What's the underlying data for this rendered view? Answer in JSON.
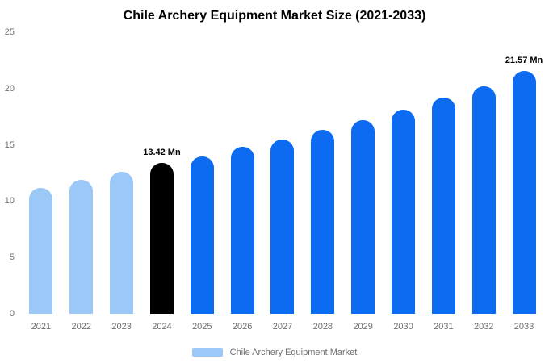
{
  "chart_data": {
    "type": "bar",
    "title": "Chile Archery Equipment Market Size (2021-2033)",
    "unit": "Mn",
    "categories": [
      "2021",
      "2022",
      "2023",
      "2024",
      "2025",
      "2026",
      "2027",
      "2028",
      "2029",
      "2030",
      "2031",
      "2032",
      "2033"
    ],
    "values": [
      11.2,
      11.9,
      12.6,
      13.42,
      14.0,
      14.8,
      15.5,
      16.3,
      17.2,
      18.1,
      19.2,
      20.2,
      21.57
    ],
    "bar_color_roles": [
      "historical",
      "historical",
      "historical",
      "highlight",
      "forecast",
      "forecast",
      "forecast",
      "forecast",
      "forecast",
      "forecast",
      "forecast",
      "forecast",
      "forecast"
    ],
    "colors": {
      "historical": "#9cc8f7",
      "highlight": "#000000",
      "forecast": "#0d6bf2"
    },
    "data_labels": [
      {
        "index": 3,
        "text": "13.42 Mn"
      },
      {
        "index": 12,
        "text": "21.57 Mn"
      }
    ],
    "xlabel": "",
    "ylabel": "",
    "ylim": [
      0,
      25
    ],
    "yticks": [
      0,
      5,
      10,
      15,
      20,
      25
    ],
    "grid": false,
    "legend": {
      "position": "bottom",
      "label": "Chile Archery Equipment Market",
      "swatch_color": "#9cc8f7"
    }
  }
}
